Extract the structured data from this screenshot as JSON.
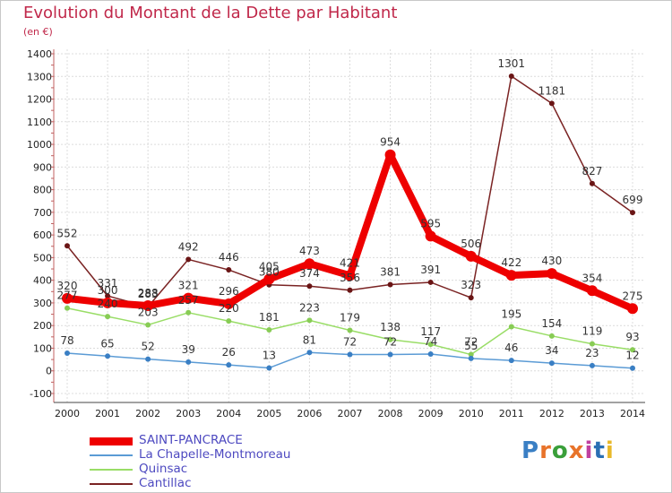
{
  "header": {
    "title": "Evolution du Montant de la Dette par Habitant",
    "unit": "(en €)"
  },
  "brand": {
    "letters": [
      "P",
      "r",
      "o",
      "x",
      "i",
      "t",
      "i"
    ],
    "colors": [
      "#3a7fc4",
      "#e8732a",
      "#3a9f3a",
      "#e8732a",
      "#c040a0",
      "#2a6fb4",
      "#e8b82a"
    ]
  },
  "chart_data": {
    "type": "line",
    "title": "Evolution du Montant de la Dette par Habitant",
    "subtitle": "(en €)",
    "x": [
      "2000",
      "2001",
      "2002",
      "2003",
      "2004",
      "2005",
      "2006",
      "2007",
      "2008",
      "2009",
      "2010",
      "2011",
      "2012",
      "2013",
      "2014"
    ],
    "ylim": [
      -100,
      1400
    ],
    "yticks": [
      -100,
      0,
      100,
      200,
      300,
      400,
      500,
      600,
      700,
      800,
      900,
      1000,
      1100,
      1200,
      1300,
      1400
    ],
    "grid": true,
    "legend_position": "bottom-left",
    "series": [
      {
        "name": "SAINT-PANCRACE",
        "color": "#ee0000",
        "values": [
          320,
          300,
          288,
          321,
          296,
          405,
          473,
          421,
          954,
          595,
          506,
          422,
          430,
          354,
          275
        ]
      },
      {
        "name": "La Chapelle-Montmoreau",
        "color": "#5b9bd5",
        "values": [
          78,
          65,
          52,
          39,
          26,
          13,
          81,
          72,
          72,
          74,
          55,
          46,
          34,
          23,
          12
        ]
      },
      {
        "name": "Quinsac",
        "color": "#99dd66",
        "values": [
          277,
          240,
          203,
          257,
          220,
          181,
          223,
          179,
          138,
          117,
          72,
          195,
          154,
          119,
          93
        ]
      },
      {
        "name": "Cantillac",
        "color": "#7a2323",
        "values": [
          552,
          331,
          283,
          492,
          446,
          380,
          374,
          356,
          381,
          391,
          323,
          1301,
          1181,
          827,
          699
        ]
      }
    ]
  }
}
